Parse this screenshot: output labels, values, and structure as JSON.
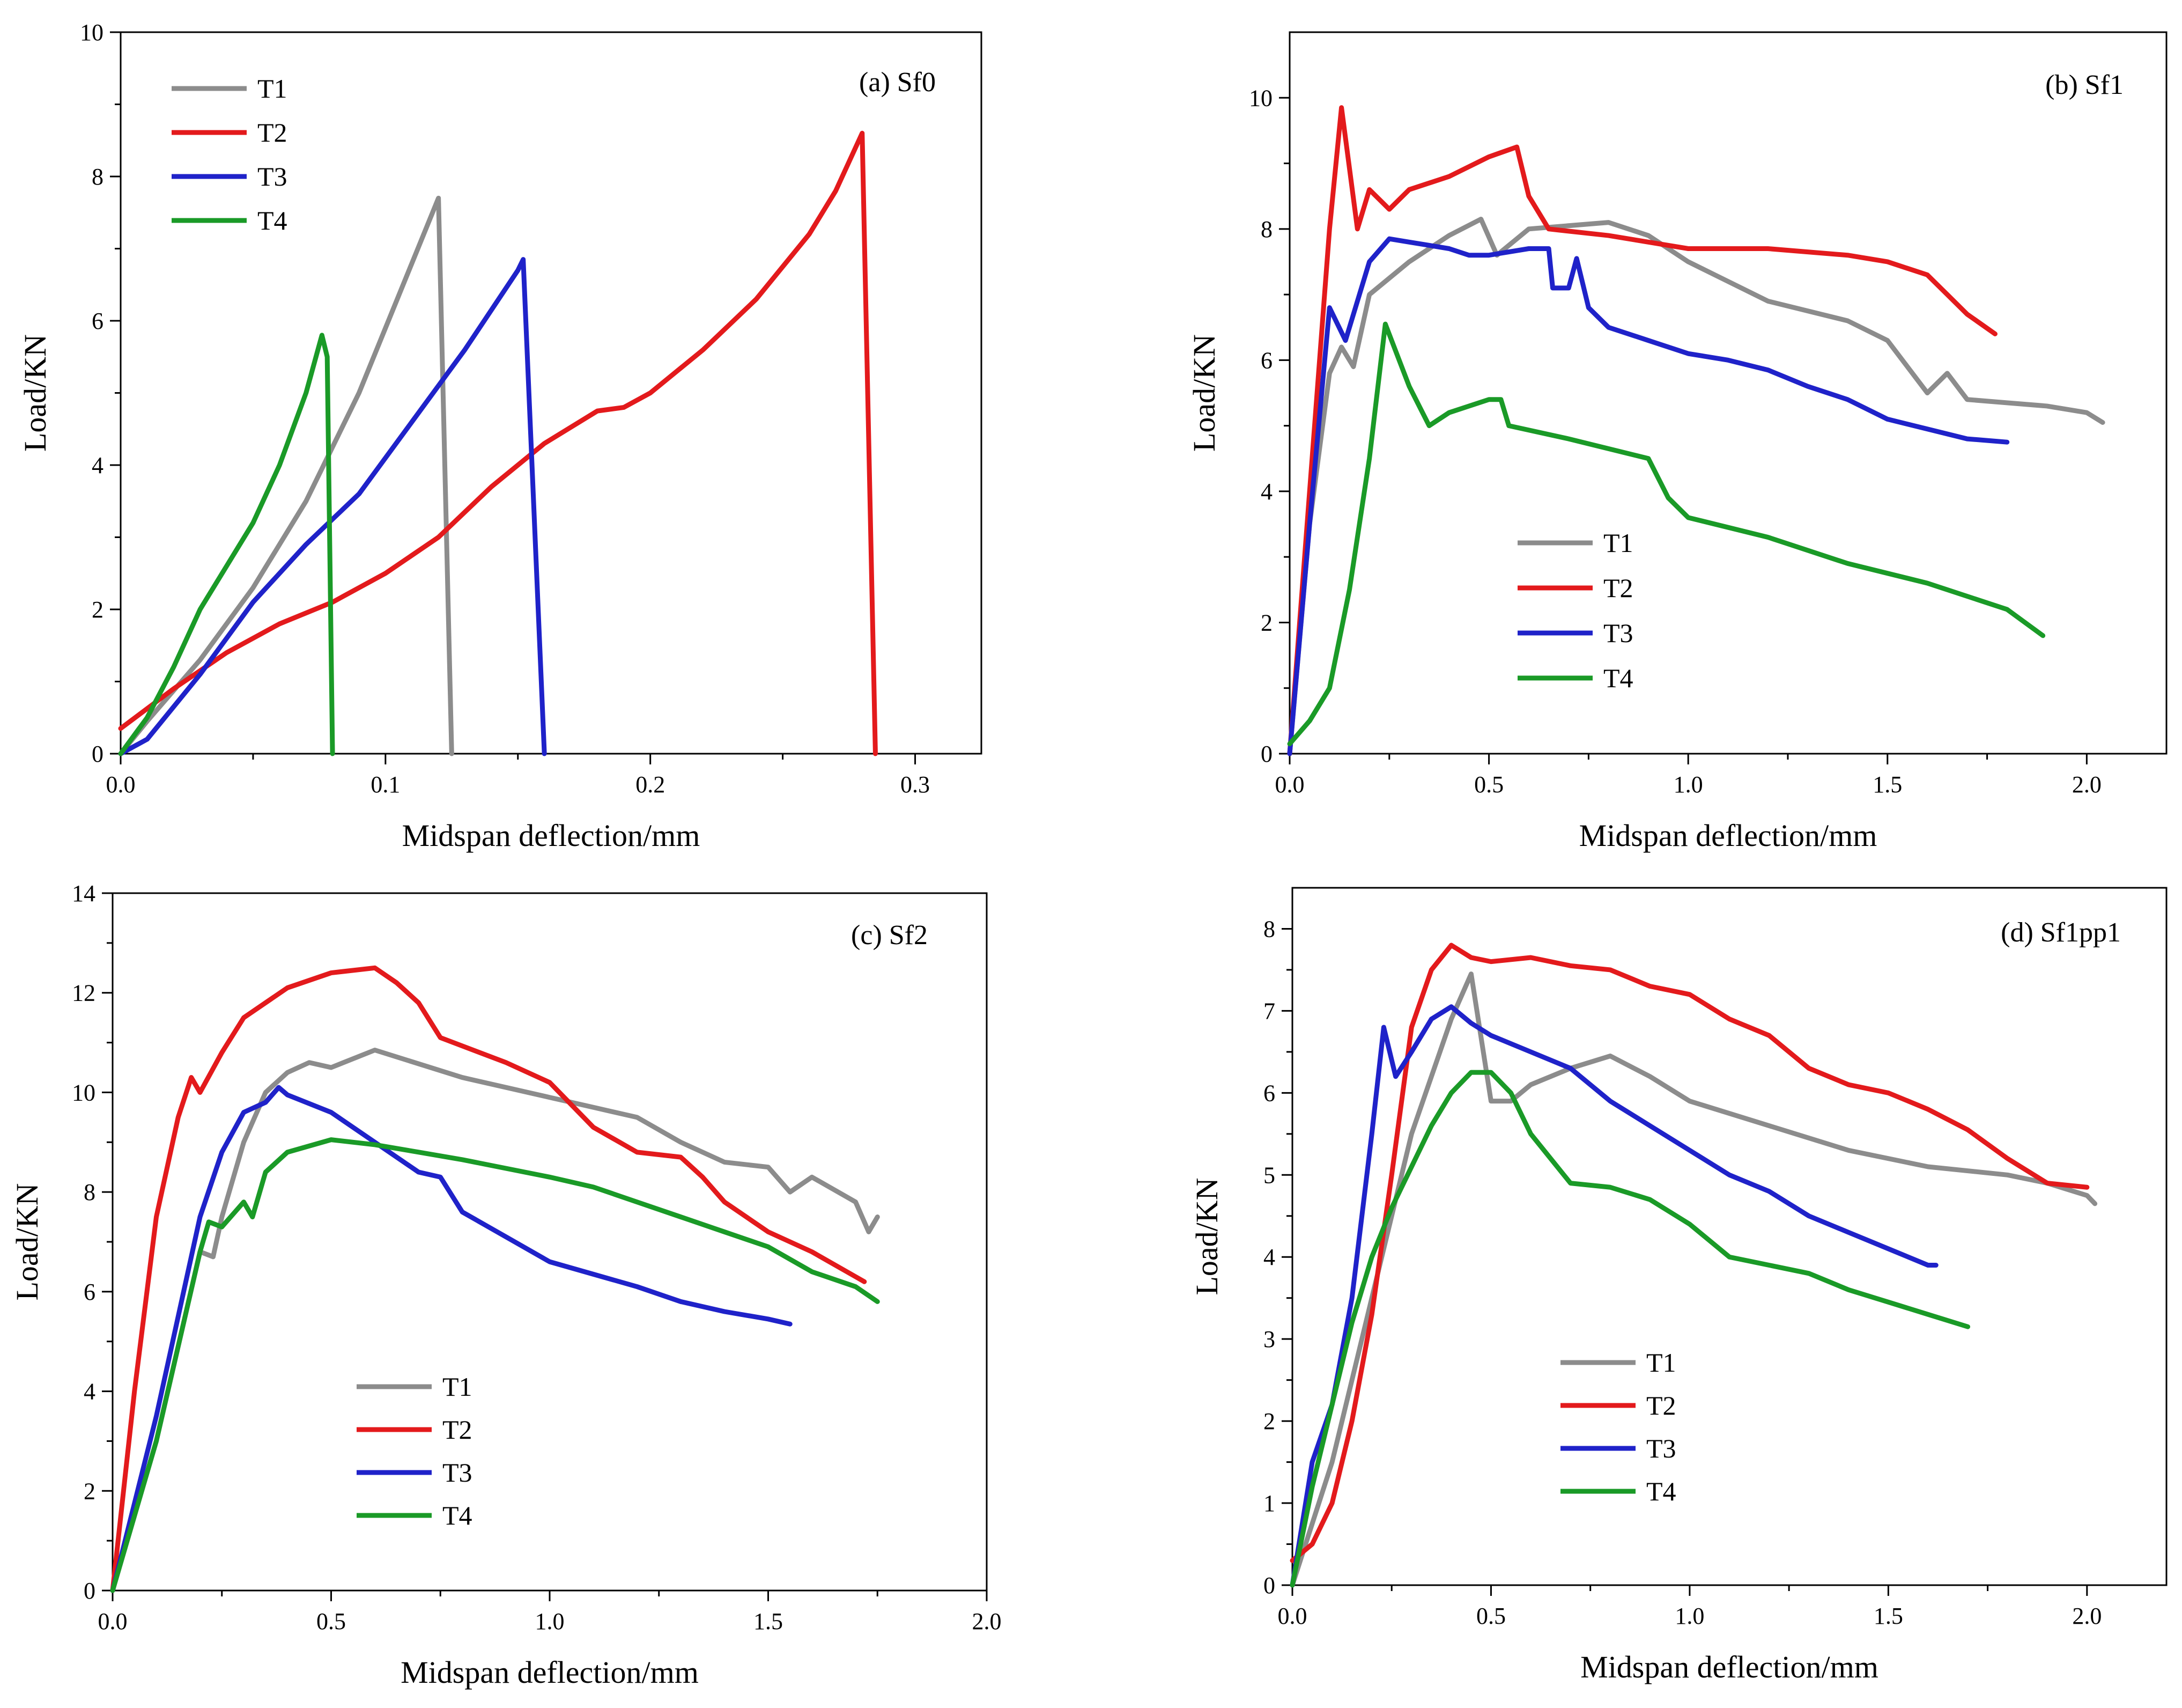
{
  "colors": {
    "T1": "#8c8c8c",
    "T2": "#e31a1c",
    "T3": "#1f22c9",
    "T4": "#1a9a27"
  },
  "chart_data": [
    {
      "type": "line",
      "title": "(a)  Sf0",
      "xlabel": "Midspan deflection/mm",
      "ylabel": "Load/KN",
      "xlim": [
        0,
        0.325
      ],
      "ylim": [
        0,
        10
      ],
      "xticks": [
        0,
        0.1,
        0.2,
        0.3
      ],
      "xtick_labels": [
        "0.0",
        "0.1",
        "0.2",
        "0.3"
      ],
      "yticks": [
        0,
        2,
        4,
        6,
        8,
        10
      ],
      "ytick_labels": [
        "0",
        "2",
        "4",
        "6",
        "8",
        "10"
      ],
      "legend_position": "top-left",
      "series": [
        {
          "name": "T1",
          "x": [
            0,
            0.01,
            0.03,
            0.05,
            0.07,
            0.09,
            0.11,
            0.12,
            0.125
          ],
          "y": [
            0,
            0.45,
            1.3,
            2.3,
            3.5,
            5.0,
            6.8,
            7.7,
            0
          ]
        },
        {
          "name": "T2",
          "x": [
            0,
            0.02,
            0.04,
            0.06,
            0.08,
            0.1,
            0.12,
            0.14,
            0.16,
            0.18,
            0.19,
            0.2,
            0.22,
            0.24,
            0.26,
            0.27,
            0.28,
            0.285
          ],
          "y": [
            0.35,
            0.9,
            1.4,
            1.8,
            2.1,
            2.5,
            3.0,
            3.7,
            4.3,
            4.75,
            4.8,
            5.0,
            5.6,
            6.3,
            7.2,
            7.8,
            8.6,
            0
          ]
        },
        {
          "name": "T3",
          "x": [
            0,
            0.01,
            0.03,
            0.05,
            0.07,
            0.09,
            0.11,
            0.13,
            0.15,
            0.152,
            0.16
          ],
          "y": [
            0,
            0.2,
            1.1,
            2.1,
            2.9,
            3.6,
            4.6,
            5.6,
            6.7,
            6.85,
            0
          ]
        },
        {
          "name": "T4",
          "x": [
            0,
            0.01,
            0.02,
            0.03,
            0.04,
            0.05,
            0.06,
            0.07,
            0.076,
            0.078,
            0.08
          ],
          "y": [
            0,
            0.5,
            1.2,
            2.0,
            2.6,
            3.2,
            4.0,
            5.0,
            5.8,
            5.5,
            0
          ]
        }
      ]
    },
    {
      "type": "line",
      "title": "(b)  Sf1",
      "xlabel": "Midspan deflection/mm",
      "ylabel": "Load/KN",
      "xlim": [
        0,
        2.2
      ],
      "ylim": [
        0,
        11
      ],
      "xticks": [
        0,
        0.5,
        1.0,
        1.5,
        2.0
      ],
      "xtick_labels": [
        "0.0",
        "0.5",
        "1.0",
        "1.5",
        "2.0"
      ],
      "yticks": [
        0,
        2,
        4,
        6,
        8,
        10
      ],
      "ytick_labels": [
        "0",
        "2",
        "4",
        "6",
        "8",
        "10"
      ],
      "legend_position": "center-left",
      "series": [
        {
          "name": "T1",
          "x": [
            0,
            0.05,
            0.1,
            0.13,
            0.16,
            0.2,
            0.3,
            0.4,
            0.48,
            0.52,
            0.6,
            0.8,
            0.9,
            1.0,
            1.2,
            1.4,
            1.5,
            1.55,
            1.6,
            1.65,
            1.7,
            1.8,
            1.9,
            2.0,
            2.04
          ],
          "y": [
            0,
            3.5,
            5.8,
            6.2,
            5.9,
            7.0,
            7.5,
            7.9,
            8.15,
            7.6,
            8.0,
            8.1,
            7.9,
            7.5,
            6.9,
            6.6,
            6.3,
            5.9,
            5.5,
            5.8,
            5.4,
            5.35,
            5.3,
            5.2,
            5.05
          ]
        },
        {
          "name": "T2",
          "x": [
            0,
            0.05,
            0.1,
            0.13,
            0.17,
            0.2,
            0.25,
            0.3,
            0.4,
            0.5,
            0.57,
            0.6,
            0.65,
            0.8,
            1.0,
            1.2,
            1.4,
            1.5,
            1.6,
            1.65,
            1.7,
            1.77
          ],
          "y": [
            0,
            4.0,
            8.0,
            9.85,
            8.0,
            8.6,
            8.3,
            8.6,
            8.8,
            9.1,
            9.25,
            8.5,
            8.0,
            7.9,
            7.7,
            7.7,
            7.6,
            7.5,
            7.3,
            7.0,
            6.7,
            6.4
          ]
        },
        {
          "name": "T3",
          "x": [
            0,
            0.05,
            0.1,
            0.14,
            0.2,
            0.25,
            0.3,
            0.4,
            0.45,
            0.5,
            0.6,
            0.65,
            0.66,
            0.7,
            0.72,
            0.75,
            0.8,
            0.9,
            1.0,
            1.1,
            1.2,
            1.3,
            1.4,
            1.5,
            1.6,
            1.7,
            1.8
          ],
          "y": [
            0,
            3.5,
            6.8,
            6.3,
            7.5,
            7.85,
            7.8,
            7.7,
            7.6,
            7.6,
            7.7,
            7.7,
            7.1,
            7.1,
            7.55,
            6.8,
            6.5,
            6.3,
            6.1,
            6.0,
            5.85,
            5.6,
            5.4,
            5.1,
            4.95,
            4.8,
            4.75
          ]
        },
        {
          "name": "T4",
          "x": [
            0,
            0.05,
            0.1,
            0.15,
            0.2,
            0.24,
            0.3,
            0.35,
            0.4,
            0.5,
            0.53,
            0.55,
            0.7,
            0.9,
            0.95,
            1.0,
            1.2,
            1.4,
            1.6,
            1.8,
            1.89
          ],
          "y": [
            0.15,
            0.5,
            1.0,
            2.5,
            4.5,
            6.55,
            5.6,
            5.0,
            5.2,
            5.4,
            5.4,
            5.0,
            4.8,
            4.5,
            3.9,
            3.6,
            3.3,
            2.9,
            2.6,
            2.2,
            1.8
          ]
        }
      ]
    },
    {
      "type": "line",
      "title": "(c)  Sf2",
      "xlabel": "Midspan deflection/mm",
      "ylabel": "Load/KN",
      "xlim": [
        0,
        2.0
      ],
      "ylim": [
        0,
        14
      ],
      "xticks": [
        0,
        0.5,
        1.0,
        1.5,
        2.0
      ],
      "xtick_labels": [
        "0.0",
        "0.5",
        "1.0",
        "1.5",
        "2.0"
      ],
      "yticks": [
        0,
        2,
        4,
        6,
        8,
        10,
        12,
        14
      ],
      "ytick_labels": [
        "0",
        "2",
        "4",
        "6",
        "8",
        "10",
        "12",
        "14"
      ],
      "legend_position": "bottom-left",
      "series": [
        {
          "name": "T1",
          "x": [
            0,
            0.1,
            0.2,
            0.23,
            0.25,
            0.3,
            0.35,
            0.4,
            0.45,
            0.5,
            0.6,
            0.8,
            1.0,
            1.1,
            1.2,
            1.3,
            1.4,
            1.5,
            1.55,
            1.6,
            1.7,
            1.73,
            1.75
          ],
          "y": [
            0,
            3.0,
            6.8,
            6.7,
            7.5,
            9.0,
            10.0,
            10.4,
            10.6,
            10.5,
            10.85,
            10.3,
            9.9,
            9.7,
            9.5,
            9.0,
            8.6,
            8.5,
            8.0,
            8.3,
            7.8,
            7.2,
            7.5
          ]
        },
        {
          "name": "T2",
          "x": [
            0,
            0.05,
            0.1,
            0.15,
            0.18,
            0.2,
            0.25,
            0.3,
            0.4,
            0.5,
            0.6,
            0.65,
            0.7,
            0.75,
            0.9,
            1.0,
            1.1,
            1.2,
            1.3,
            1.35,
            1.4,
            1.5,
            1.6,
            1.7,
            1.72
          ],
          "y": [
            0,
            4.0,
            7.5,
            9.5,
            10.3,
            10.0,
            10.8,
            11.5,
            12.1,
            12.4,
            12.5,
            12.2,
            11.8,
            11.1,
            10.6,
            10.2,
            9.3,
            8.8,
            8.7,
            8.3,
            7.8,
            7.2,
            6.8,
            6.3,
            6.2
          ]
        },
        {
          "name": "T3",
          "x": [
            0,
            0.1,
            0.2,
            0.25,
            0.3,
            0.35,
            0.38,
            0.4,
            0.5,
            0.6,
            0.7,
            0.75,
            0.8,
            0.9,
            1.0,
            1.1,
            1.2,
            1.3,
            1.4,
            1.5,
            1.55
          ],
          "y": [
            0,
            3.5,
            7.5,
            8.8,
            9.6,
            9.8,
            10.1,
            9.95,
            9.6,
            9.0,
            8.4,
            8.3,
            7.6,
            7.1,
            6.6,
            6.35,
            6.1,
            5.8,
            5.6,
            5.45,
            5.35
          ]
        },
        {
          "name": "T4",
          "x": [
            0,
            0.1,
            0.2,
            0.22,
            0.25,
            0.28,
            0.3,
            0.32,
            0.35,
            0.4,
            0.5,
            0.6,
            0.7,
            0.8,
            1.0,
            1.1,
            1.2,
            1.3,
            1.4,
            1.5,
            1.6,
            1.7,
            1.75
          ],
          "y": [
            0,
            3.0,
            6.8,
            7.4,
            7.3,
            7.6,
            7.8,
            7.5,
            8.4,
            8.8,
            9.05,
            8.95,
            8.8,
            8.65,
            8.3,
            8.1,
            7.8,
            7.5,
            7.2,
            6.9,
            6.4,
            6.1,
            5.8
          ]
        }
      ]
    },
    {
      "type": "line",
      "title": "(d)  Sf1pp1",
      "xlabel": "Midspan deflection/mm",
      "ylabel": "Load/KN",
      "xlim": [
        0,
        2.2
      ],
      "ylim": [
        0,
        8.5
      ],
      "xticks": [
        0,
        0.5,
        1.0,
        1.5,
        2.0
      ],
      "xtick_labels": [
        "0.0",
        "0.5",
        "1.0",
        "1.5",
        "2.0"
      ],
      "yticks": [
        0,
        1,
        2,
        3,
        4,
        5,
        6,
        7,
        8
      ],
      "ytick_labels": [
        "0",
        "1",
        "2",
        "3",
        "4",
        "5",
        "6",
        "7",
        "8"
      ],
      "legend_position": "bottom-left",
      "series": [
        {
          "name": "T1",
          "x": [
            0,
            0.1,
            0.2,
            0.3,
            0.4,
            0.45,
            0.5,
            0.55,
            0.6,
            0.7,
            0.8,
            0.9,
            1.0,
            1.2,
            1.4,
            1.6,
            1.8,
            1.9,
            2.0,
            2.02
          ],
          "y": [
            0,
            1.5,
            3.5,
            5.5,
            6.9,
            7.45,
            5.9,
            5.9,
            6.1,
            6.3,
            6.45,
            6.2,
            5.9,
            5.6,
            5.3,
            5.1,
            5.0,
            4.9,
            4.75,
            4.65
          ]
        },
        {
          "name": "T2",
          "x": [
            0,
            0.05,
            0.1,
            0.15,
            0.2,
            0.25,
            0.3,
            0.35,
            0.4,
            0.45,
            0.5,
            0.6,
            0.7,
            0.8,
            0.9,
            1.0,
            1.1,
            1.2,
            1.3,
            1.4,
            1.5,
            1.6,
            1.7,
            1.8,
            1.9,
            2.0
          ],
          "y": [
            0.3,
            0.5,
            1.0,
            2.0,
            3.3,
            5.0,
            6.8,
            7.5,
            7.8,
            7.65,
            7.6,
            7.65,
            7.55,
            7.5,
            7.3,
            7.2,
            6.9,
            6.7,
            6.3,
            6.1,
            6.0,
            5.8,
            5.55,
            5.2,
            4.9,
            4.85
          ]
        },
        {
          "name": "T3",
          "x": [
            0,
            0.05,
            0.1,
            0.15,
            0.2,
            0.23,
            0.26,
            0.3,
            0.35,
            0.4,
            0.45,
            0.5,
            0.6,
            0.7,
            0.8,
            0.9,
            1.0,
            1.1,
            1.2,
            1.3,
            1.4,
            1.5,
            1.6,
            1.62
          ],
          "y": [
            0,
            1.5,
            2.2,
            3.5,
            5.5,
            6.8,
            6.2,
            6.5,
            6.9,
            7.05,
            6.85,
            6.7,
            6.5,
            6.3,
            5.9,
            5.6,
            5.3,
            5.0,
            4.8,
            4.5,
            4.3,
            4.1,
            3.9,
            3.9
          ]
        },
        {
          "name": "T4",
          "x": [
            0,
            0.05,
            0.1,
            0.15,
            0.2,
            0.25,
            0.3,
            0.35,
            0.4,
            0.45,
            0.5,
            0.55,
            0.6,
            0.7,
            0.8,
            0.9,
            1.0,
            1.1,
            1.2,
            1.3,
            1.4,
            1.5,
            1.6,
            1.7
          ],
          "y": [
            0,
            1.2,
            2.2,
            3.2,
            4.0,
            4.6,
            5.1,
            5.6,
            6.0,
            6.25,
            6.25,
            6.0,
            5.5,
            4.9,
            4.85,
            4.7,
            4.4,
            4.0,
            3.9,
            3.8,
            3.6,
            3.45,
            3.3,
            3.15
          ]
        }
      ]
    }
  ]
}
